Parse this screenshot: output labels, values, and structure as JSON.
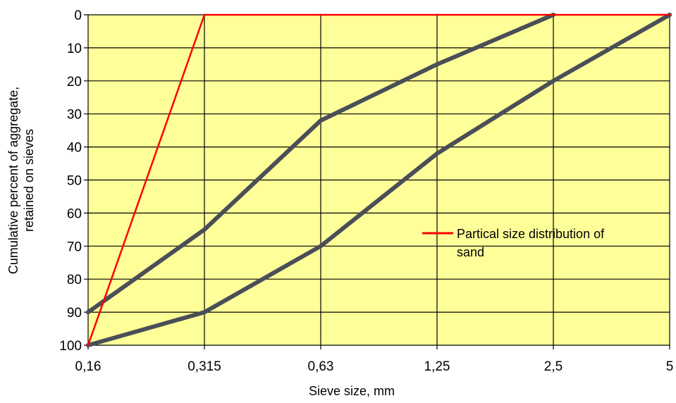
{
  "chart_data": {
    "type": "line",
    "xlabel": "Sieve size, mm",
    "ylabel_lines": [
      "Cumulative percent of aggregate,",
      "retained on sieves"
    ],
    "x_categories": [
      "0,16",
      "0,315",
      "0,63",
      "1,25",
      "2,5",
      "5"
    ],
    "y_ticks": [
      0,
      10,
      20,
      30,
      40,
      50,
      60,
      70,
      80,
      90,
      100
    ],
    "ylim": [
      0,
      100
    ],
    "y_inverted": true,
    "grid": true,
    "background_color": "#FFFF99",
    "legend": {
      "placement": "right",
      "entries": [
        {
          "lines": [
            "Partical size distribution of",
            "sand"
          ],
          "color": "#FF0000"
        }
      ]
    },
    "series": [
      {
        "role": "upper-boundary",
        "color": "#4A4E57",
        "points": [
          [
            0,
            90
          ],
          [
            1,
            65
          ],
          [
            2,
            32
          ],
          [
            3,
            15
          ],
          [
            4,
            0
          ]
        ]
      },
      {
        "role": "lower-boundary",
        "color": "#4A4E57",
        "points": [
          [
            0,
            100
          ],
          [
            1,
            90
          ],
          [
            2,
            70
          ],
          [
            3,
            42
          ],
          [
            4,
            20
          ],
          [
            5,
            0
          ]
        ]
      },
      {
        "name": "Partical size distribution of sand",
        "color": "#FF0000",
        "points": [
          [
            0,
            100
          ],
          [
            1,
            0
          ],
          [
            2,
            0
          ],
          [
            3,
            0
          ],
          [
            4,
            0
          ],
          [
            5,
            0
          ]
        ]
      }
    ]
  }
}
